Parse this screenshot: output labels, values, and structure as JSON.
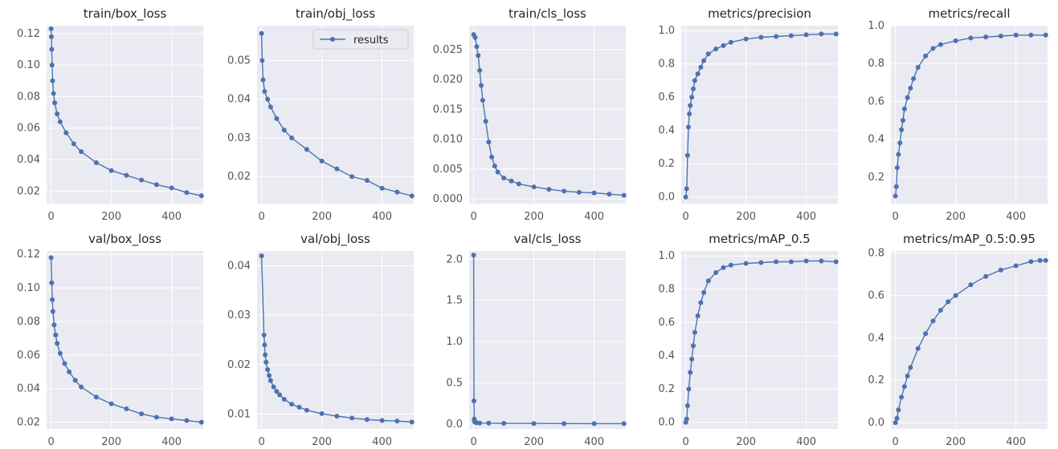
{
  "colors": {
    "series": "#4c72b0",
    "panel_background": "#eaeaf2",
    "grid": "#ffffff"
  },
  "legend": {
    "label": "results",
    "placement": "top-right",
    "panel": "train/obj_loss"
  },
  "chart_data": [
    {
      "type": "scatter",
      "title": "train/box_loss",
      "xlabel": "",
      "ylabel": "",
      "xlim": [
        -15,
        505
      ],
      "ylim": [
        0.012,
        0.125
      ],
      "grid": true,
      "xticks": [
        0,
        200,
        400
      ],
      "yticks": [
        0.02,
        0.04,
        0.06,
        0.08,
        0.1,
        0.12
      ],
      "ytick_labels": [
        "0.02",
        "0.04",
        "0.06",
        "0.08",
        "0.10",
        "0.12"
      ],
      "series": [
        {
          "name": "results",
          "x": [
            0,
            1,
            2,
            3,
            5,
            8,
            12,
            20,
            30,
            50,
            75,
            100,
            150,
            200,
            250,
            300,
            350,
            400,
            450,
            499
          ],
          "values": [
            0.123,
            0.118,
            0.11,
            0.1,
            0.09,
            0.082,
            0.076,
            0.069,
            0.064,
            0.057,
            0.05,
            0.045,
            0.038,
            0.033,
            0.03,
            0.027,
            0.024,
            0.022,
            0.019,
            0.017
          ]
        }
      ]
    },
    {
      "type": "scatter",
      "title": "train/obj_loss",
      "xlabel": "",
      "ylabel": "",
      "xlim": [
        -15,
        505
      ],
      "ylim": [
        0.013,
        0.059
      ],
      "grid": true,
      "xticks": [
        0,
        200,
        400
      ],
      "yticks": [
        0.02,
        0.03,
        0.04,
        0.05
      ],
      "ytick_labels": [
        "0.02",
        "0.03",
        "0.04",
        "0.05"
      ],
      "series": [
        {
          "name": "results",
          "x": [
            0,
            2,
            5,
            10,
            20,
            30,
            50,
            75,
            100,
            150,
            200,
            250,
            300,
            350,
            400,
            450,
            499
          ],
          "values": [
            0.057,
            0.05,
            0.045,
            0.042,
            0.04,
            0.038,
            0.035,
            0.032,
            0.03,
            0.027,
            0.024,
            0.022,
            0.02,
            0.019,
            0.017,
            0.016,
            0.015
          ]
        }
      ]
    },
    {
      "type": "scatter",
      "title": "train/cls_loss",
      "xlabel": "",
      "ylabel": "",
      "xlim": [
        -15,
        505
      ],
      "ylim": [
        -0.0008,
        0.029
      ],
      "grid": true,
      "xticks": [
        0,
        200,
        400
      ],
      "yticks": [
        0.0,
        0.005,
        0.01,
        0.015,
        0.02,
        0.025
      ],
      "ytick_labels": [
        "0.000",
        "0.005",
        "0.010",
        "0.015",
        "0.020",
        "0.025"
      ],
      "series": [
        {
          "name": "results",
          "x": [
            0,
            5,
            10,
            15,
            20,
            25,
            30,
            40,
            50,
            60,
            70,
            80,
            100,
            125,
            150,
            200,
            250,
            300,
            350,
            400,
            450,
            499
          ],
          "values": [
            0.0275,
            0.027,
            0.0255,
            0.024,
            0.0215,
            0.019,
            0.0165,
            0.013,
            0.0095,
            0.007,
            0.0055,
            0.0045,
            0.0035,
            0.003,
            0.0025,
            0.002,
            0.0016,
            0.0013,
            0.0011,
            0.001,
            0.0008,
            0.0006
          ]
        }
      ]
    },
    {
      "type": "scatter",
      "title": "metrics/precision",
      "xlabel": "",
      "ylabel": "",
      "xlim": [
        -15,
        505
      ],
      "ylim": [
        -0.04,
        1.03
      ],
      "grid": true,
      "xticks": [
        0,
        200,
        400
      ],
      "yticks": [
        0.0,
        0.2,
        0.4,
        0.6,
        0.8,
        1.0
      ],
      "ytick_labels": [
        "0.0",
        "0.2",
        "0.4",
        "0.6",
        "0.8",
        "1.0"
      ],
      "series": [
        {
          "name": "results",
          "x": [
            0,
            3,
            6,
            9,
            12,
            15,
            20,
            25,
            30,
            40,
            50,
            60,
            75,
            100,
            125,
            150,
            200,
            250,
            300,
            350,
            400,
            450,
            499
          ],
          "values": [
            0.0,
            0.05,
            0.25,
            0.42,
            0.5,
            0.55,
            0.6,
            0.65,
            0.7,
            0.74,
            0.78,
            0.82,
            0.86,
            0.89,
            0.91,
            0.93,
            0.95,
            0.96,
            0.965,
            0.97,
            0.975,
            0.98,
            0.98
          ]
        }
      ]
    },
    {
      "type": "scatter",
      "title": "metrics/recall",
      "xlabel": "",
      "ylabel": "",
      "xlim": [
        -15,
        505
      ],
      "ylim": [
        0.06,
        1.0
      ],
      "grid": true,
      "xticks": [
        0,
        200,
        400
      ],
      "yticks": [
        0.2,
        0.4,
        0.6,
        0.8,
        1.0
      ],
      "ytick_labels": [
        "0.2",
        "0.4",
        "0.6",
        "0.8",
        "1.0"
      ],
      "series": [
        {
          "name": "results",
          "x": [
            0,
            3,
            6,
            10,
            15,
            20,
            25,
            30,
            40,
            50,
            60,
            75,
            100,
            125,
            150,
            200,
            250,
            300,
            350,
            400,
            450,
            499
          ],
          "values": [
            0.1,
            0.15,
            0.25,
            0.32,
            0.38,
            0.45,
            0.5,
            0.56,
            0.62,
            0.67,
            0.72,
            0.78,
            0.84,
            0.88,
            0.9,
            0.92,
            0.935,
            0.94,
            0.945,
            0.95,
            0.95,
            0.95
          ]
        }
      ]
    },
    {
      "type": "scatter",
      "title": "val/box_loss",
      "xlabel": "",
      "ylabel": "",
      "xlim": [
        -15,
        505
      ],
      "ylim": [
        0.016,
        0.122
      ],
      "grid": true,
      "xticks": [
        0,
        200,
        400
      ],
      "yticks": [
        0.02,
        0.04,
        0.06,
        0.08,
        0.1,
        0.12
      ],
      "ytick_labels": [
        "0.02",
        "0.04",
        "0.06",
        "0.08",
        "0.10",
        "0.12"
      ],
      "series": [
        {
          "name": "results",
          "x": [
            0,
            2,
            4,
            6,
            10,
            15,
            20,
            30,
            45,
            60,
            80,
            100,
            150,
            200,
            250,
            300,
            350,
            400,
            450,
            499
          ],
          "values": [
            0.118,
            0.103,
            0.093,
            0.086,
            0.078,
            0.072,
            0.067,
            0.061,
            0.055,
            0.05,
            0.045,
            0.041,
            0.035,
            0.031,
            0.028,
            0.025,
            0.023,
            0.022,
            0.021,
            0.02
          ]
        }
      ]
    },
    {
      "type": "scatter",
      "title": "val/obj_loss",
      "xlabel": "",
      "ylabel": "",
      "xlim": [
        -15,
        505
      ],
      "ylim": [
        0.007,
        0.043
      ],
      "grid": true,
      "xticks": [
        0,
        200,
        400
      ],
      "yticks": [
        0.01,
        0.02,
        0.03,
        0.04
      ],
      "ytick_labels": [
        "0.01",
        "0.02",
        "0.03",
        "0.04"
      ],
      "series": [
        {
          "name": "results",
          "x": [
            0,
            8,
            10,
            12,
            15,
            20,
            25,
            30,
            40,
            50,
            60,
            75,
            100,
            125,
            150,
            200,
            250,
            300,
            350,
            400,
            450,
            499
          ],
          "values": [
            0.042,
            0.026,
            0.024,
            0.022,
            0.0205,
            0.019,
            0.0178,
            0.0168,
            0.0155,
            0.0146,
            0.0139,
            0.013,
            0.012,
            0.0114,
            0.0108,
            0.0101,
            0.0096,
            0.0092,
            0.0089,
            0.0087,
            0.0086,
            0.0084
          ]
        }
      ]
    },
    {
      "type": "scatter",
      "title": "val/cls_loss",
      "xlabel": "",
      "ylabel": "",
      "xlim": [
        -15,
        505
      ],
      "ylim": [
        -0.06,
        2.1
      ],
      "grid": true,
      "xticks": [
        0,
        200,
        400
      ],
      "yticks": [
        0.0,
        0.5,
        1.0,
        1.5,
        2.0
      ],
      "ytick_labels": [
        "0.0",
        "0.5",
        "1.0",
        "1.5",
        "2.0"
      ],
      "series": [
        {
          "name": "results",
          "x": [
            0,
            1,
            2,
            3,
            5,
            10,
            20,
            50,
            100,
            200,
            300,
            400,
            499
          ],
          "values": [
            2.05,
            0.28,
            0.06,
            0.03,
            0.02,
            0.015,
            0.012,
            0.01,
            0.008,
            0.006,
            0.005,
            0.004,
            0.004
          ]
        }
      ]
    },
    {
      "type": "scatter",
      "title": "metrics/mAP_0.5",
      "xlabel": "",
      "ylabel": "",
      "xlim": [
        -15,
        505
      ],
      "ylim": [
        -0.04,
        1.03
      ],
      "grid": true,
      "xticks": [
        0,
        200,
        400
      ],
      "yticks": [
        0.0,
        0.2,
        0.4,
        0.6,
        0.8,
        1.0
      ],
      "ytick_labels": [
        "0.0",
        "0.2",
        "0.4",
        "0.6",
        "0.8",
        "1.0"
      ],
      "series": [
        {
          "name": "results",
          "x": [
            0,
            3,
            6,
            10,
            15,
            20,
            25,
            30,
            40,
            50,
            60,
            75,
            100,
            125,
            150,
            200,
            250,
            300,
            350,
            400,
            450,
            499
          ],
          "values": [
            0.0,
            0.02,
            0.1,
            0.2,
            0.3,
            0.38,
            0.46,
            0.54,
            0.64,
            0.72,
            0.78,
            0.85,
            0.9,
            0.93,
            0.945,
            0.955,
            0.96,
            0.965,
            0.965,
            0.97,
            0.97,
            0.965
          ]
        }
      ]
    },
    {
      "type": "scatter",
      "title": "metrics/mAP_0.5:0.95",
      "xlabel": "",
      "ylabel": "",
      "xlim": [
        -15,
        505
      ],
      "ylim": [
        -0.03,
        0.81
      ],
      "grid": true,
      "xticks": [
        0,
        200,
        400
      ],
      "yticks": [
        0.0,
        0.2,
        0.4,
        0.6,
        0.8
      ],
      "ytick_labels": [
        "0.0",
        "0.2",
        "0.4",
        "0.6",
        "0.8"
      ],
      "series": [
        {
          "name": "results",
          "x": [
            0,
            5,
            10,
            20,
            30,
            40,
            50,
            75,
            100,
            125,
            150,
            175,
            200,
            250,
            300,
            350,
            400,
            450,
            480,
            499
          ],
          "values": [
            0.0,
            0.02,
            0.06,
            0.12,
            0.17,
            0.22,
            0.26,
            0.35,
            0.42,
            0.48,
            0.53,
            0.57,
            0.6,
            0.65,
            0.69,
            0.72,
            0.74,
            0.76,
            0.765,
            0.765
          ]
        }
      ]
    }
  ]
}
